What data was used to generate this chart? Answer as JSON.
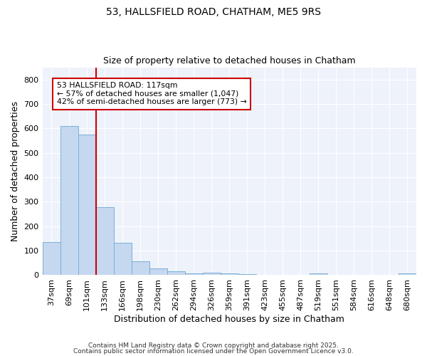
{
  "title_line1": "53, HALLSFIELD ROAD, CHATHAM, ME5 9RS",
  "title_line2": "Size of property relative to detached houses in Chatham",
  "xlabel": "Distribution of detached houses by size in Chatham",
  "ylabel": "Number of detached properties",
  "categories": [
    "37sqm",
    "69sqm",
    "101sqm",
    "133sqm",
    "166sqm",
    "198sqm",
    "230sqm",
    "262sqm",
    "294sqm",
    "326sqm",
    "359sqm",
    "391sqm",
    "423sqm",
    "455sqm",
    "487sqm",
    "519sqm",
    "551sqm",
    "584sqm",
    "616sqm",
    "648sqm",
    "680sqm"
  ],
  "values": [
    135,
    610,
    575,
    278,
    132,
    58,
    28,
    16,
    8,
    9,
    8,
    5,
    0,
    0,
    0,
    6,
    0,
    0,
    0,
    0,
    6
  ],
  "bar_color": "#c5d8f0",
  "bar_edge_color": "#7bafd4",
  "red_line_x": 2.5,
  "annotation_text": "53 HALLSFIELD ROAD: 117sqm\n← 57% of detached houses are smaller (1,047)\n42% of semi-detached houses are larger (773) →",
  "annotation_box_color": "#ffffff",
  "annotation_box_edge": "#cc0000",
  "red_line_color": "#cc0000",
  "background_color": "#ffffff",
  "plot_bg_color": "#eef2fb",
  "grid_color": "#ffffff",
  "footer_line1": "Contains HM Land Registry data © Crown copyright and database right 2025.",
  "footer_line2": "Contains public sector information licensed under the Open Government Licence v3.0.",
  "ylim": [
    0,
    850
  ],
  "yticks": [
    0,
    100,
    200,
    300,
    400,
    500,
    600,
    700,
    800
  ]
}
